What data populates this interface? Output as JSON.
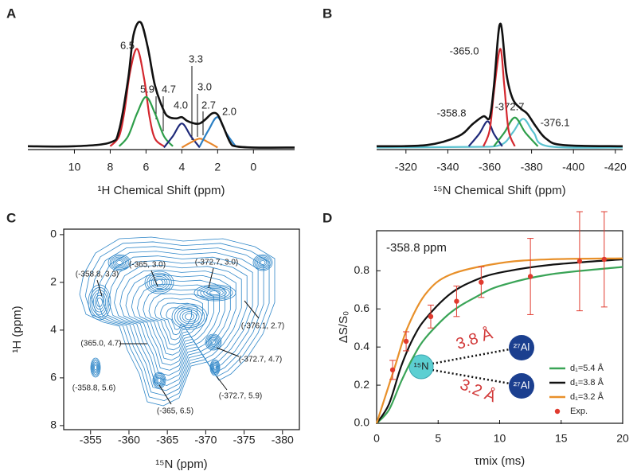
{
  "chart_data": [
    {
      "label": "A",
      "type": "line",
      "x_label": "¹H Chemical Shift (ppm)",
      "xlim": [
        12.6,
        -2.3
      ],
      "xticks": [
        10,
        8,
        6,
        4,
        2,
        0
      ],
      "ylim": [
        0,
        1
      ],
      "annotations": [
        "6.5",
        "5.9",
        "4.7",
        "4.0",
        "3.3",
        "3.0",
        "2.7",
        "2.0"
      ],
      "series": [
        {
          "color": "#d4282f",
          "x": [
            8,
            7.5,
            7.2,
            6.9,
            6.5,
            6.1,
            5.8,
            5.5,
            5
          ],
          "values": [
            0.02,
            0.1,
            0.3,
            0.6,
            0.79,
            0.55,
            0.25,
            0.08,
            0.02
          ]
        },
        {
          "color": "#2e9e4a",
          "x": [
            7.5,
            7,
            6.5,
            6,
            5.5,
            5,
            4.5
          ],
          "values": [
            0.02,
            0.1,
            0.28,
            0.41,
            0.28,
            0.1,
            0.02
          ]
        },
        {
          "color": "#1f2a7a",
          "x": [
            5,
            4.5,
            4,
            3.5,
            3
          ],
          "values": [
            0.01,
            0.1,
            0.2,
            0.1,
            0.01
          ]
        },
        {
          "color": "#e8862a",
          "x": [
            4,
            3.5,
            3,
            2.5,
            2
          ],
          "values": [
            0.01,
            0.05,
            0.08,
            0.05,
            0.01
          ]
        },
        {
          "color": "#2a7fc4",
          "x": [
            3,
            2.5,
            2,
            1.5,
            1
          ],
          "values": [
            0.02,
            0.15,
            0.25,
            0.12,
            0.02
          ]
        },
        {
          "color": "#111111",
          "x": [
            12.6,
            10,
            8,
            7.5,
            7,
            6.7,
            6.3,
            5.9,
            5.5,
            5,
            4.7,
            4.3,
            4,
            3.7,
            3.3,
            3,
            2.7,
            2.3,
            2,
            1.7,
            1.3,
            1,
            0,
            -2.3
          ],
          "values": [
            0.02,
            0.02,
            0.05,
            0.15,
            0.55,
            0.9,
            1.0,
            0.8,
            0.5,
            0.3,
            0.25,
            0.24,
            0.25,
            0.22,
            0.2,
            0.2,
            0.23,
            0.28,
            0.27,
            0.18,
            0.05,
            0.02,
            0.01,
            0.01
          ]
        }
      ]
    },
    {
      "label": "B",
      "type": "line",
      "x_label": "¹⁵N Chemical Shift (ppm)",
      "xlim": [
        -306,
        -423.5
      ],
      "xticks": [
        -320,
        -340,
        -360,
        -380,
        -400,
        -420
      ],
      "ylim": [
        0,
        1
      ],
      "annotations": [
        "-365.0",
        "-358.8",
        "-372.7",
        "-376.1"
      ],
      "series": [
        {
          "color": "#5bc2d0",
          "x": [
            -306,
            -350,
            -365,
            -371,
            -376,
            -381,
            -388,
            -423.5
          ],
          "values": [
            0.01,
            0.015,
            0.03,
            0.13,
            0.24,
            0.13,
            0.02,
            0.01
          ]
        },
        {
          "color": "#1f2a7a",
          "x": [
            -350,
            -355,
            -359,
            -362,
            -366
          ],
          "values": [
            0.02,
            0.12,
            0.22,
            0.12,
            0.02
          ]
        },
        {
          "color": "#2e9e4a",
          "x": [
            -362,
            -367,
            -372,
            -377,
            -383
          ],
          "values": [
            0.02,
            0.13,
            0.25,
            0.13,
            0.02
          ]
        },
        {
          "color": "#d4282f",
          "x": [
            -357,
            -360,
            -362,
            -365,
            -367,
            -369,
            -372
          ],
          "values": [
            0.02,
            0.15,
            0.45,
            0.8,
            0.5,
            0.15,
            0.02
          ]
        },
        {
          "color": "#111111",
          "x": [
            -306,
            -330,
            -345,
            -352,
            -357,
            -360,
            -362,
            -364,
            -365,
            -366,
            -368,
            -371,
            -375,
            -378,
            -382,
            -387,
            -395,
            -423.5
          ],
          "values": [
            0.02,
            0.03,
            0.1,
            0.2,
            0.26,
            0.25,
            0.5,
            0.9,
            1.0,
            0.93,
            0.6,
            0.4,
            0.32,
            0.28,
            0.18,
            0.08,
            0.03,
            0.02
          ]
        }
      ]
    },
    {
      "label": "C",
      "type": "contour",
      "x_label": "¹⁵N (ppm)",
      "y_label": "¹H (ppm)",
      "xlim": [
        -351.5,
        -382.2
      ],
      "xticks": [
        -355,
        -360,
        -365,
        -370,
        -375,
        -380
      ],
      "ylim": [
        8.17,
        -0.23
      ],
      "yticks": [
        0,
        2,
        4,
        6,
        8
      ],
      "annotations": [
        "(-358.8, 3.3)",
        "(-365, 3.0)",
        "(-372.7, 3.0)",
        "(-376.1, 2.7)",
        "(365.0, 4.7)",
        "(-372.7, 4.7)",
        "(-358.8, 5.6)",
        "(-372.7, 5.9)",
        "(-365, 6.5)"
      ]
    },
    {
      "label": "D",
      "type": "line",
      "title": "-358.8 ppm",
      "x_label": "τmix (ms)",
      "y_label": "ΔS/S₀",
      "xlim": [
        0,
        20
      ],
      "xticks": [
        0,
        5,
        10,
        15,
        20
      ],
      "ylim": [
        0,
        1.01
      ],
      "yticks": [
        {
          "value": 0,
          "label": "0.0"
        },
        0.2,
        0.4,
        0.6,
        0.8
      ],
      "legend": "lower right",
      "annotations": [
        "3.8 Å",
        "3.2 Å",
        "¹⁵N",
        "²⁷Al",
        "²⁷Al"
      ],
      "series": [
        {
          "name": "d₁=5.4 Å",
          "color": "#3aa457",
          "x": [
            0,
            1,
            2,
            3,
            4,
            6,
            8,
            10,
            14,
            20
          ],
          "values": [
            0,
            0.07,
            0.22,
            0.35,
            0.45,
            0.58,
            0.66,
            0.72,
            0.78,
            0.82
          ]
        },
        {
          "name": "d₁=3.8 Å",
          "color": "#111111",
          "x": [
            0,
            1,
            2,
            3,
            4,
            6,
            8,
            10,
            14,
            20
          ],
          "values": [
            0,
            0.1,
            0.3,
            0.45,
            0.55,
            0.68,
            0.75,
            0.79,
            0.83,
            0.86
          ]
        },
        {
          "name": "d₁=3.2 Å",
          "color": "#e8902a",
          "x": [
            0,
            1.5,
            2.5,
            4,
            6,
            10,
            14,
            20
          ],
          "values": [
            0,
            0.3,
            0.5,
            0.68,
            0.78,
            0.84,
            0.86,
            0.865
          ]
        },
        {
          "name": "Exp.",
          "color": "#e03a2e",
          "mode": "markers",
          "x": [
            1.3,
            2.4,
            4.4,
            6.5,
            8.5,
            12.5,
            16.5,
            18.5
          ],
          "values": [
            0.28,
            0.43,
            0.56,
            0.64,
            0.74,
            0.77,
            0.85,
            0.86
          ],
          "errors": [
            0.05,
            0.05,
            0.06,
            0.08,
            0.08,
            0.2,
            0.26,
            0.25
          ]
        }
      ]
    }
  ]
}
